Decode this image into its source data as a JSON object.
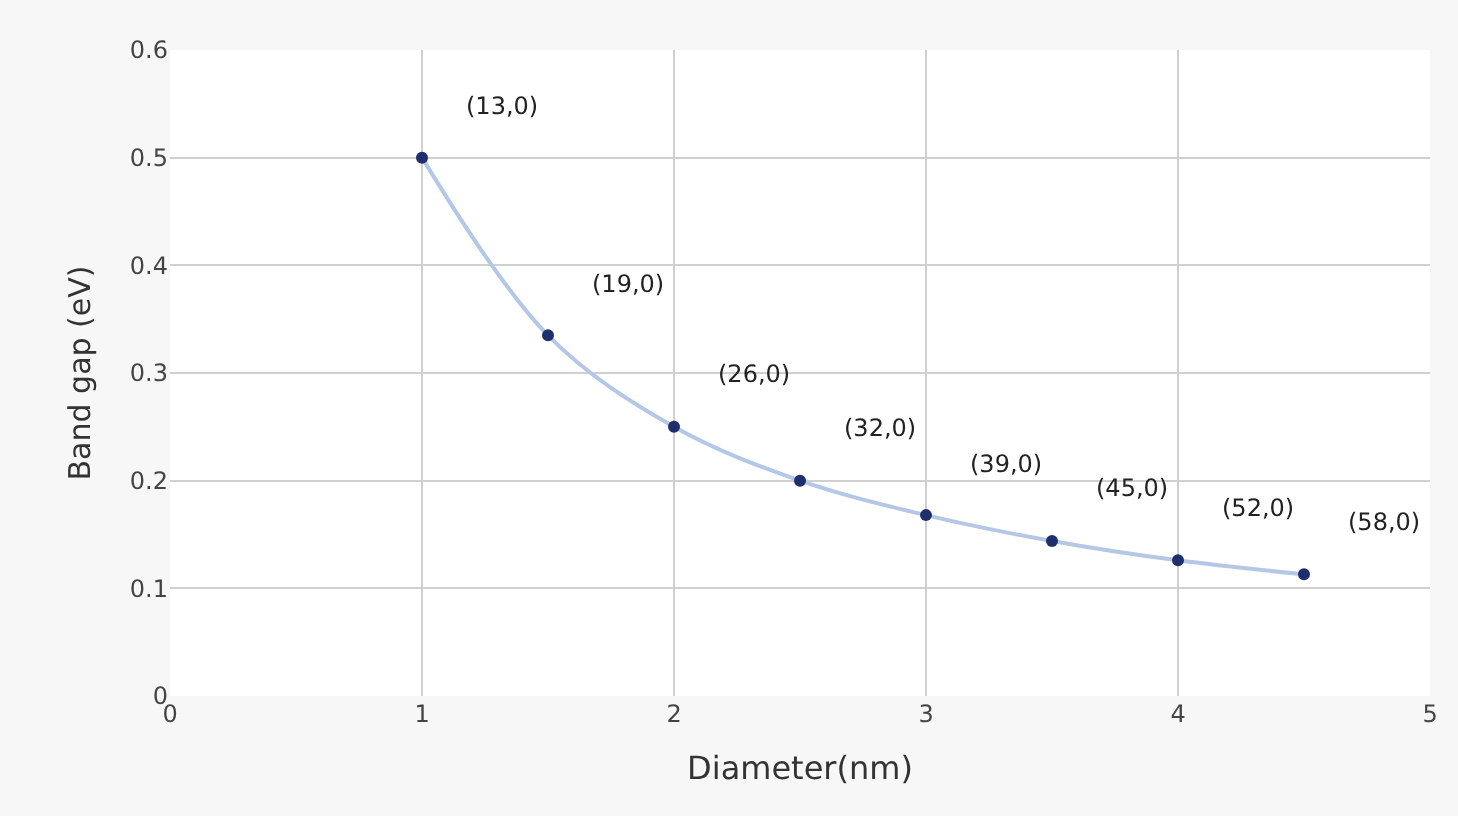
{
  "chart_data": {
    "type": "line",
    "xlabel": "Diameter(nm)",
    "ylabel": "Band gap (eV)",
    "x": [
      1,
      1.5,
      2,
      2.5,
      3,
      3.5,
      4,
      4.5
    ],
    "series": [
      {
        "color": "#b4c7e7",
        "colors": [
          "#1f2f6e",
          "#1f2f6e",
          "#1f2f6e",
          "#1f2f6e",
          "#1f2f6e",
          "#1f2f6e",
          "#1f2f6e",
          "#1f2f6e"
        ],
        "values": [
          0.5,
          0.335,
          0.25,
          0.2,
          0.168,
          0.144,
          0.126,
          0.113
        ]
      }
    ],
    "annotations": [
      {
        "text": "(13,0)",
        "x": 1,
        "y": 0.5
      },
      {
        "text": "(19,0)",
        "x": 1.5,
        "y": 0.335
      },
      {
        "text": "(26,0)",
        "x": 2,
        "y": 0.25
      },
      {
        "text": "(32,0)",
        "x": 2.5,
        "y": 0.2
      },
      {
        "text": "(39,0)",
        "x": 3,
        "y": 0.168
      },
      {
        "text": "(45,0)",
        "x": 3.5,
        "y": 0.144
      },
      {
        "text": "(52,0)",
        "x": 4,
        "y": 0.126
      },
      {
        "text": "(58,0)",
        "x": 4.5,
        "y": 0.113
      }
    ],
    "xlim": [
      0,
      5
    ],
    "xticks": [
      0,
      1,
      2,
      3,
      4,
      5
    ],
    "ylim": [
      0,
      0.6
    ],
    "yticks": [
      0,
      0.1,
      0.2,
      0.3,
      0.4,
      0.5,
      0.6
    ],
    "grid": true,
    "marker": "circle",
    "line_style": "solid",
    "legend": false
  }
}
